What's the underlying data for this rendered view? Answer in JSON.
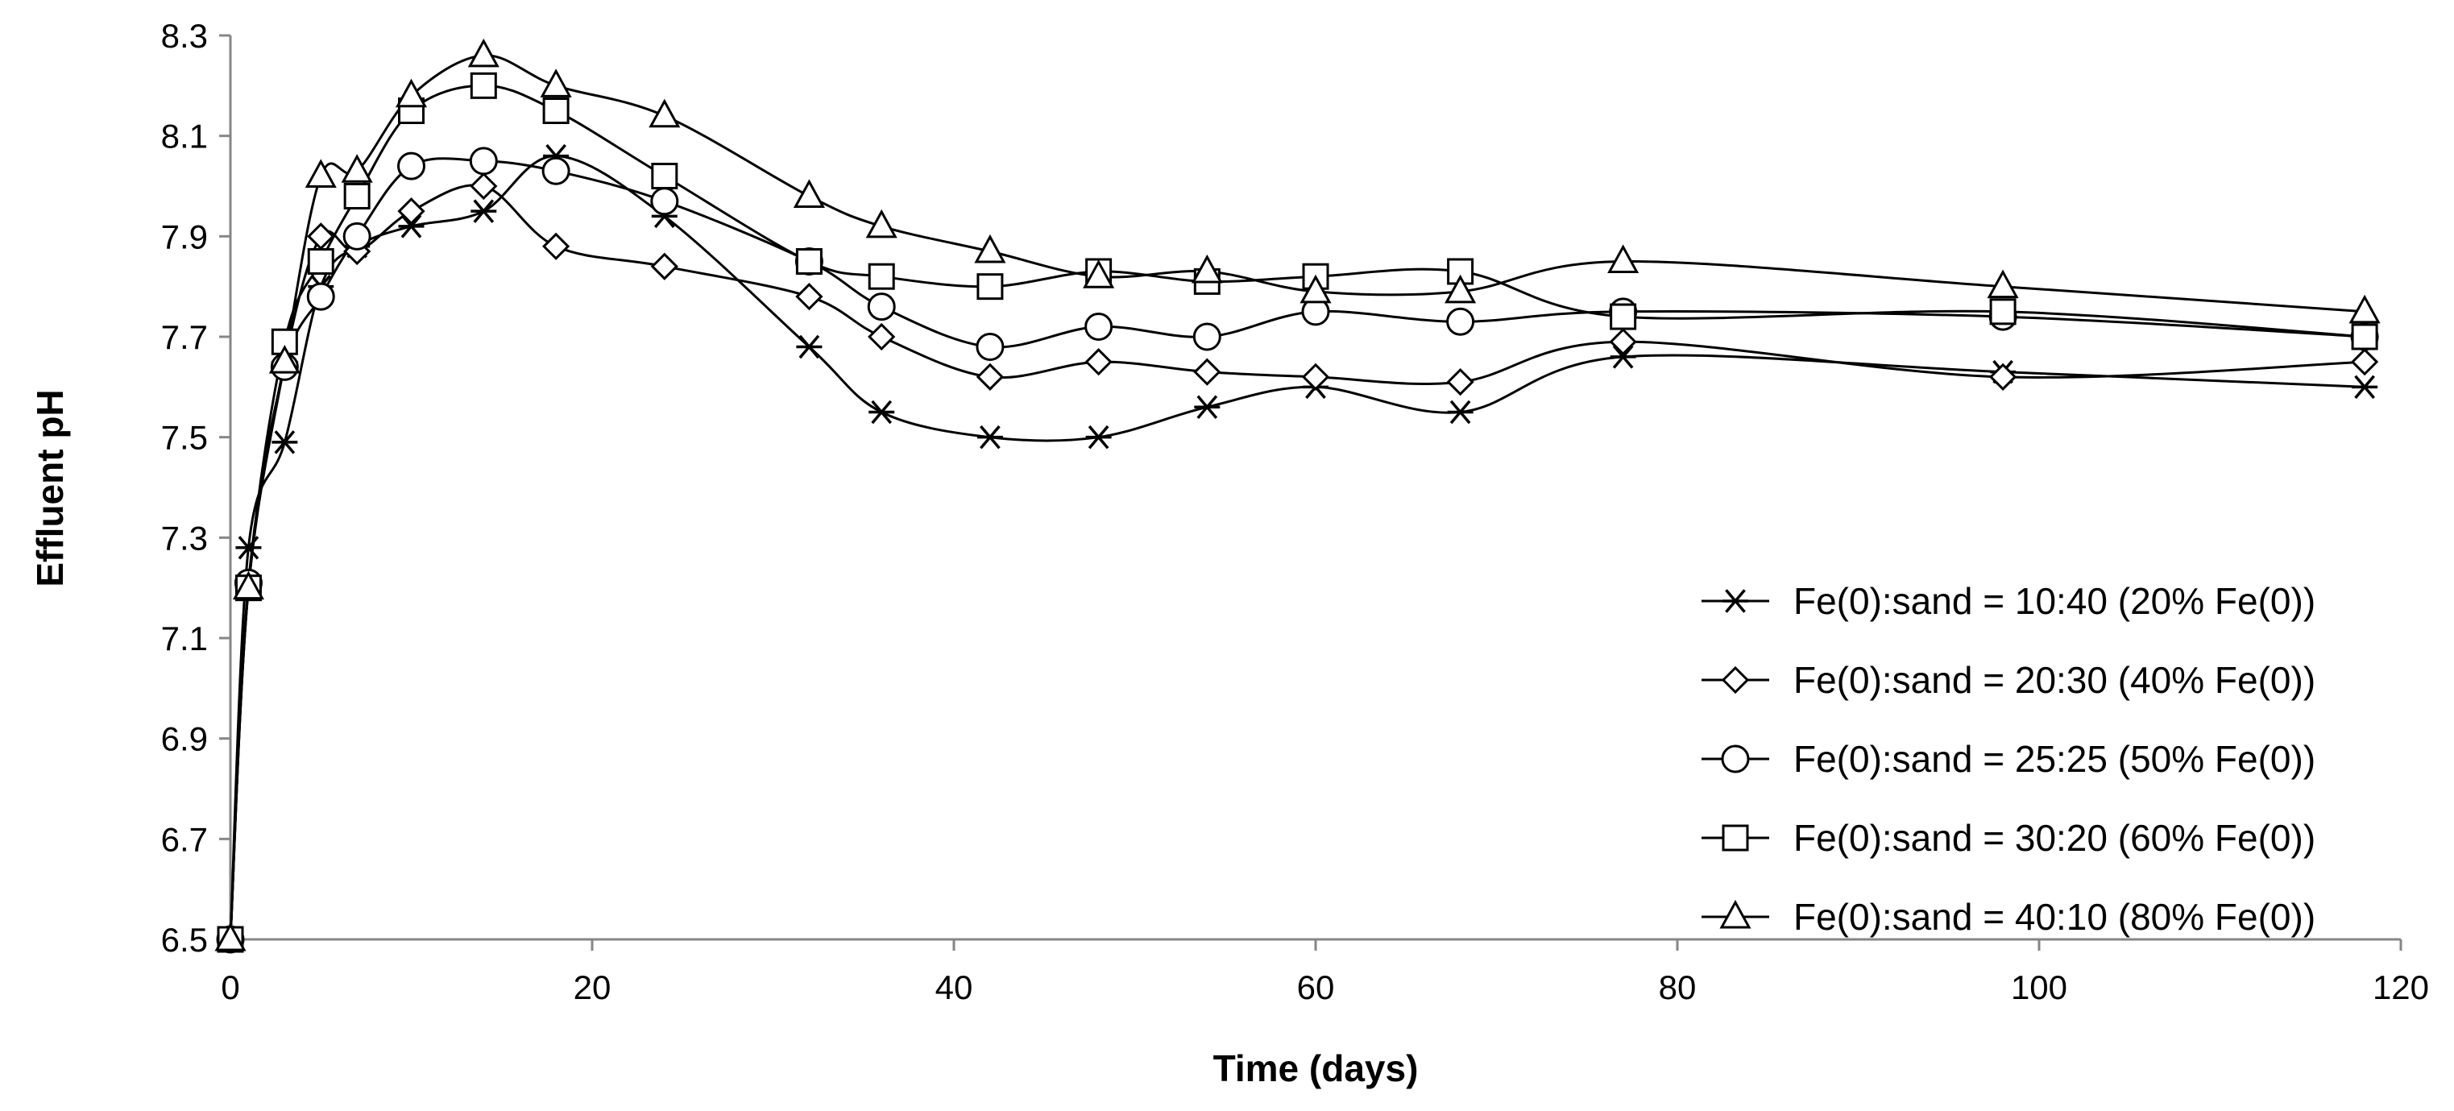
{
  "chart_data": {
    "type": "line",
    "title": "",
    "xlabel": "Time (days)",
    "ylabel": "Effluent pH",
    "xlim": [
      0,
      120
    ],
    "ylim": [
      6.5,
      8.3
    ],
    "xticks": [
      0,
      20,
      40,
      60,
      80,
      100,
      120
    ],
    "yticks": [
      6.5,
      6.7,
      6.9,
      7.1,
      7.3,
      7.5,
      7.7,
      7.9,
      8.1,
      8.3
    ],
    "xtick_labels": [
      "0",
      "20",
      "40",
      "60",
      "80",
      "100",
      "120"
    ],
    "ytick_labels": [
      "6.5",
      "6.7",
      "6.9",
      "7.1",
      "7.3",
      "7.5",
      "7.7",
      "7.9",
      "8.1",
      "8.3"
    ],
    "grid": false,
    "legend_position": "bottom-right",
    "x": [
      0,
      1,
      3,
      5,
      7,
      10,
      14,
      18,
      24,
      32,
      36,
      42,
      48,
      54,
      60,
      68,
      77,
      98,
      118
    ],
    "series": [
      {
        "name": "Fe(0):sand = 10:40 (20% Fe(0))",
        "marker": "star",
        "values": [
          6.5,
          7.28,
          7.49,
          7.8,
          7.88,
          7.92,
          7.95,
          8.06,
          7.94,
          7.68,
          7.55,
          7.5,
          7.5,
          7.56,
          7.6,
          7.55,
          7.66,
          7.63,
          7.6
        ]
      },
      {
        "name": "Fe(0):sand = 20:30 (40% Fe(0))",
        "marker": "diamond",
        "values": [
          6.5,
          7.2,
          7.65,
          7.9,
          7.87,
          7.95,
          8.0,
          7.88,
          7.84,
          7.78,
          7.7,
          7.62,
          7.65,
          7.63,
          7.62,
          7.61,
          7.69,
          7.62,
          7.65
        ]
      },
      {
        "name": "Fe(0):sand = 25:25 (50% Fe(0))",
        "marker": "circle",
        "values": [
          6.5,
          7.21,
          7.64,
          7.78,
          7.9,
          8.04,
          8.05,
          8.03,
          7.97,
          7.85,
          7.76,
          7.68,
          7.72,
          7.7,
          7.75,
          7.73,
          7.75,
          7.74,
          7.7
        ]
      },
      {
        "name": "Fe(0):sand = 30:20 (60% Fe(0))",
        "marker": "square",
        "values": [
          6.5,
          7.2,
          7.69,
          7.85,
          7.98,
          8.15,
          8.2,
          8.15,
          8.02,
          7.85,
          7.82,
          7.8,
          7.83,
          7.81,
          7.82,
          7.83,
          7.74,
          7.75,
          7.7
        ]
      },
      {
        "name": "Fe(0):sand = 40:10 (80% Fe(0))",
        "marker": "triangle",
        "values": [
          6.5,
          7.2,
          7.65,
          8.02,
          8.03,
          8.18,
          8.26,
          8.2,
          8.14,
          7.98,
          7.92,
          7.87,
          7.82,
          7.83,
          7.79,
          7.79,
          7.85,
          7.8,
          7.75
        ]
      }
    ]
  }
}
